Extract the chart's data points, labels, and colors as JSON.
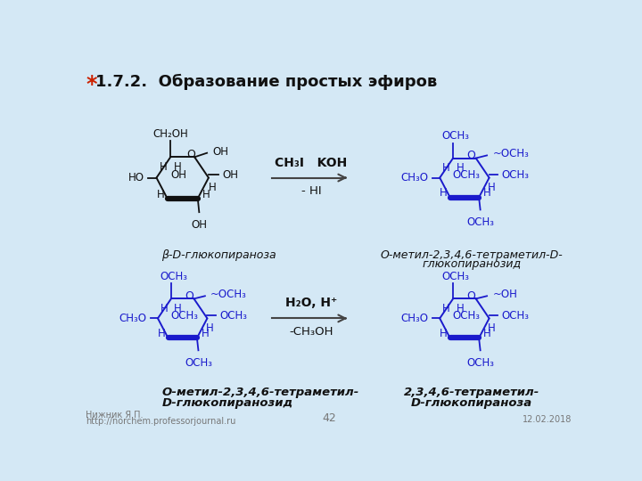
{
  "title_star": "*",
  "title_text": "1.7.2.  Образование простых эфиров",
  "title_star_color": "#cc2200",
  "title_color": "#111111",
  "bg_color": "#d4e8f5",
  "structure_color": "#111111",
  "blue_color": "#1a1acc",
  "label_top_left": "β-D-глюкопираноза",
  "label_top_right_line1": "O-метил-2,3,4,6-тетраметил-D-",
  "label_top_right_line2": "глюкопиранозид",
  "label_bot_left_line1": "O-метил-2,3,4,6-тетраметил-",
  "label_bot_left_line2": "D-глюкопиранозид",
  "label_bot_right_line1": "2,3,4,6-тетраметил-",
  "label_bot_right_line2": "D-глюкопираноза",
  "reagent_top_line1": "CH₃I   KOH",
  "reagent_top_line2": "- HI",
  "reagent_bot_line1": "H₂O, H⁺",
  "reagent_bot_line2": "-CH₃OH",
  "footer_left_line1": "Нижник Я.П.",
  "footer_left_line2": "http://norchem.professorjournal.ru",
  "footer_center": "42",
  "footer_right": "12.02.2018",
  "arrow_color": "#444444"
}
